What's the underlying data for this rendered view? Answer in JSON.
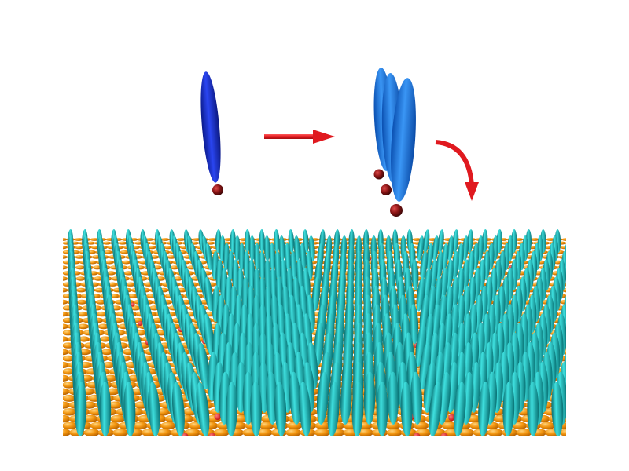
{
  "colors": {
    "background": "#ffffff",
    "single_molecule": "#1a2fd6",
    "aggregate_molecules": "#1a78e6",
    "head_group": "#7a1010",
    "arrow": "#e0191f",
    "substrate_atoms": "#f2950f",
    "monolayer_rods": "#14aeb0",
    "defect_sites": "#e41d1d"
  },
  "icons": {
    "single_molecule": "ellipsoid-molecule-icon",
    "arrow_right": "arrow-right-icon",
    "arrow_curved": "curved-arrow-down-icon"
  },
  "diagram": {
    "stages": [
      "single-molecule",
      "molecule-aggregate",
      "self-assembled-monolayer"
    ],
    "aggregate_count": 3,
    "defect_lines": 4
  }
}
